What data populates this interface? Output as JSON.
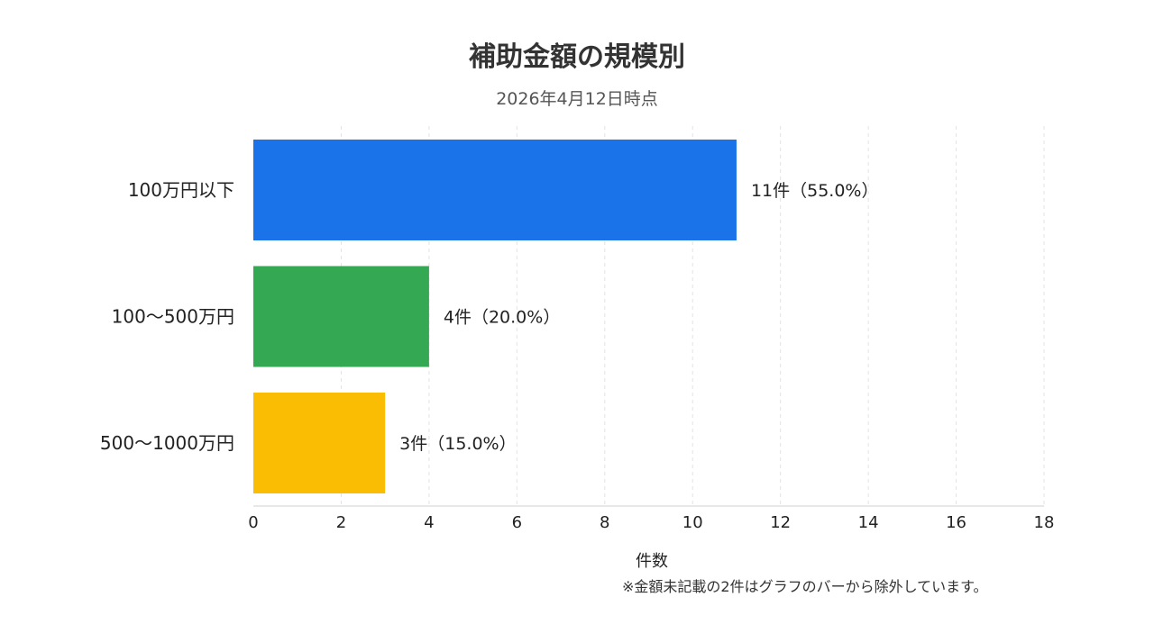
{
  "chart_data": {
    "type": "bar",
    "orientation": "horizontal",
    "title": "補助金額の規模別",
    "subtitle": "2026年4月12日時点",
    "categories": [
      "100万円以下",
      "100〜500万円",
      "500〜1000万円"
    ],
    "values": [
      11,
      4,
      3
    ],
    "data_labels": [
      "11件（55.0%）",
      "4件（20.0%）",
      "3件（15.0%）"
    ],
    "colors": [
      "#1a73e8",
      "#34a853",
      "#fbbc04"
    ],
    "xlabel": "件数",
    "ylabel": "",
    "xlim": [
      0,
      18
    ],
    "xticks": [
      0,
      2,
      4,
      6,
      8,
      10,
      12,
      14,
      16,
      18
    ],
    "grid": "vertical dashed",
    "note": "※金額未記載の2件はグラフのバーから除外しています。"
  }
}
